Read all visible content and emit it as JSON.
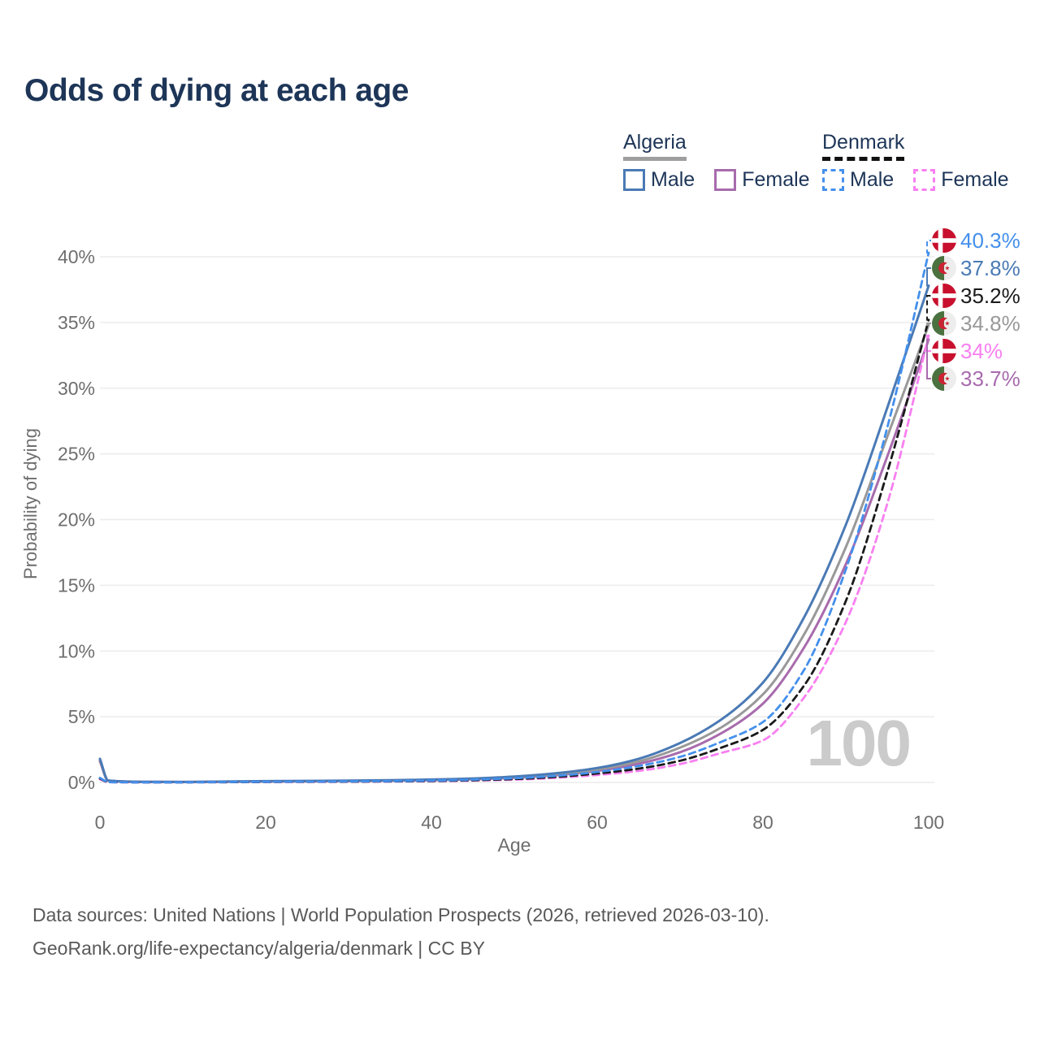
{
  "title": "Odds of dying at each age",
  "legend": {
    "groups": [
      {
        "name": "Algeria",
        "line_style": "solid",
        "underline_color": "#9e9e9e",
        "items": [
          {
            "label": "Male",
            "color": "#4a7ab5"
          },
          {
            "label": "Female",
            "color": "#a86bad"
          }
        ]
      },
      {
        "name": "Denmark",
        "line_style": "dashed",
        "underline_color": "#111111",
        "items": [
          {
            "label": "Male",
            "color": "#4490ec"
          },
          {
            "label": "Female",
            "color": "#f87ff0"
          }
        ]
      }
    ]
  },
  "watermark": "100",
  "footer": {
    "line1": "Data sources: United Nations | World Population Prospects (2026, retrieved 2026-03-10).",
    "line2": "GeoRank.org/life-expectancy/algeria/denmark | CC BY"
  },
  "chart_data": {
    "type": "line",
    "title": "Odds of dying at each age",
    "xlabel": "Age",
    "ylabel": "Probability of dying",
    "unit": "%",
    "xlim": [
      0,
      100
    ],
    "ylim": [
      0,
      42
    ],
    "grid": "horizontal",
    "legend_position": "top-right",
    "x_ticks": [
      0,
      20,
      40,
      60,
      80,
      100
    ],
    "y_ticks": [
      0,
      5,
      10,
      15,
      20,
      25,
      30,
      35,
      40
    ],
    "y_tick_labels": [
      "0%",
      "5%",
      "10%",
      "15%",
      "20%",
      "25%",
      "30%",
      "35%",
      "40%"
    ],
    "x": [
      0,
      1,
      5,
      10,
      15,
      20,
      25,
      30,
      35,
      40,
      45,
      50,
      55,
      60,
      65,
      70,
      75,
      80,
      85,
      90,
      95,
      100
    ],
    "series": [
      {
        "name": "Algeria Female",
        "country": "Algeria",
        "sex": "Female",
        "color": "#a86bad",
        "dashed": false,
        "flag": "dz",
        "end_value": 33.7,
        "end_label": "33.7%",
        "values": [
          1.6,
          0.13,
          0.04,
          0.03,
          0.05,
          0.07,
          0.08,
          0.1,
          0.13,
          0.17,
          0.24,
          0.35,
          0.55,
          0.88,
          1.42,
          2.3,
          3.75,
          6.0,
          10.3,
          16.6,
          24.8,
          33.7
        ]
      },
      {
        "name": "Algeria Both sexes",
        "country": "Algeria",
        "sex": "Both",
        "color": "#999999",
        "dashed": false,
        "flag": "dz",
        "end_value": 34.8,
        "end_label": "34.8%",
        "values": [
          1.7,
          0.14,
          0.05,
          0.04,
          0.06,
          0.08,
          0.1,
          0.12,
          0.15,
          0.19,
          0.27,
          0.4,
          0.62,
          0.98,
          1.6,
          2.65,
          4.2,
          6.7,
          11.3,
          17.9,
          26.3,
          34.8
        ]
      },
      {
        "name": "Algeria Male",
        "country": "Algeria",
        "sex": "Male",
        "color": "#4a7ab5",
        "dashed": false,
        "flag": "dz",
        "end_value": 37.8,
        "end_label": "37.8%",
        "values": [
          1.8,
          0.15,
          0.05,
          0.04,
          0.07,
          0.1,
          0.12,
          0.14,
          0.17,
          0.22,
          0.3,
          0.45,
          0.7,
          1.1,
          1.8,
          3.0,
          4.8,
          7.6,
          12.6,
          19.6,
          28.5,
          37.8
        ]
      },
      {
        "name": "Denmark Female",
        "country": "Denmark",
        "sex": "Female",
        "color": "#f87ff0",
        "dashed": true,
        "flag": "dk",
        "end_value": 34.0,
        "end_label": "34%",
        "values": [
          0.25,
          0.02,
          0.01,
          0.01,
          0.02,
          0.03,
          0.04,
          0.05,
          0.07,
          0.09,
          0.14,
          0.21,
          0.35,
          0.57,
          0.88,
          1.4,
          2.25,
          3.2,
          6.5,
          12.2,
          21.2,
          34.0
        ]
      },
      {
        "name": "Denmark Both sexes",
        "country": "Denmark",
        "sex": "Both",
        "color": "#1a1a1a",
        "dashed": true,
        "flag": "dk",
        "end_value": 35.2,
        "end_label": "35.2%",
        "values": [
          0.3,
          0.03,
          0.01,
          0.01,
          0.02,
          0.04,
          0.05,
          0.06,
          0.08,
          0.11,
          0.17,
          0.26,
          0.42,
          0.68,
          1.05,
          1.65,
          2.65,
          4.0,
          7.4,
          13.8,
          23.6,
          35.2
        ]
      },
      {
        "name": "Denmark Male",
        "country": "Denmark",
        "sex": "Male",
        "color": "#4490ec",
        "dashed": true,
        "flag": "dk",
        "end_value": 40.3,
        "end_label": "40.3%",
        "values": [
          0.35,
          0.03,
          0.01,
          0.01,
          0.03,
          0.05,
          0.06,
          0.08,
          0.1,
          0.14,
          0.21,
          0.32,
          0.5,
          0.8,
          1.25,
          1.95,
          3.1,
          4.6,
          8.6,
          16.2,
          27.0,
          40.3
        ]
      }
    ],
    "flag_colors": {
      "dk_red": "#c8102e",
      "dk_cross": "#ffffff",
      "dz_green": "#4a713f",
      "dz_white": "#ededed",
      "dz_emblem": "#cc2233"
    }
  }
}
